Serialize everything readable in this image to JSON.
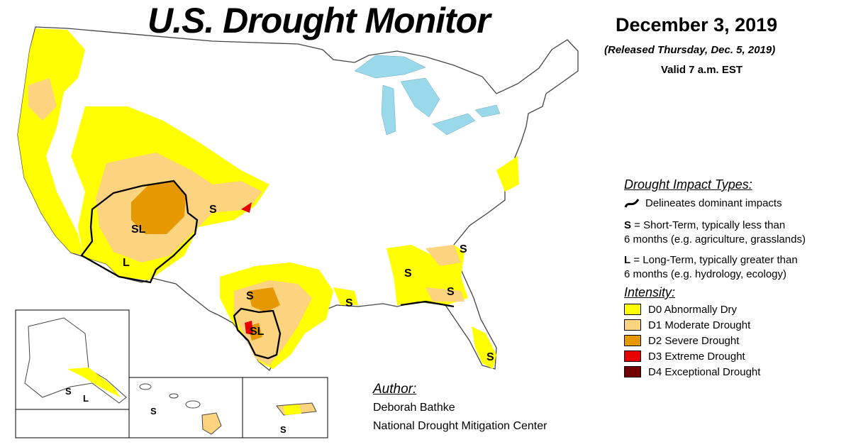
{
  "header": {
    "title": "U.S. Drought Monitor",
    "date": "December 3, 2019",
    "released": "(Released Thursday, Dec. 5, 2019)",
    "valid": "Valid 7 a.m. EST"
  },
  "impact_types": {
    "heading": "Drought Impact Types:",
    "delineates": "Delineates dominant impacts",
    "short_term": {
      "code": "S",
      "desc_line1": " = Short-Term, typically less than",
      "desc_line2": "6 months (e.g. agriculture, grasslands)"
    },
    "long_term": {
      "code": "L",
      "desc_line1": " = Long-Term, typically greater than",
      "desc_line2": "6 months (e.g. hydrology, ecology)"
    }
  },
  "intensity": {
    "heading": "Intensity:",
    "levels": [
      {
        "label": "D0 Abnormally Dry",
        "color": "#FFFF00"
      },
      {
        "label": "D1 Moderate Drought",
        "color": "#FCD37F"
      },
      {
        "label": "D2 Severe Drought",
        "color": "#E69800"
      },
      {
        "label": "D3 Extreme Drought",
        "color": "#E60000"
      },
      {
        "label": "D4 Exceptional Drought",
        "color": "#730000"
      }
    ]
  },
  "map_labels": {
    "sl_west": "SL",
    "s_central": "S",
    "l_southwest": "L",
    "s_texas": "S",
    "sl_texas": "SL",
    "s_louisiana": "S",
    "s_alabama": "S",
    "s_carolina": "S",
    "s_georgia": "S",
    "s_florida": "S",
    "s_alaska": "S",
    "l_alaska": "L",
    "s_hawaii": "S",
    "s_puerto_rico": "S"
  },
  "author": {
    "heading": "Author:",
    "name": "Deborah Bathke",
    "org": "National Drought Mitigation Center"
  },
  "colors": {
    "water": "#99D9EA",
    "border": "#555555",
    "d0": "#FFFF00",
    "d1": "#FCD37F",
    "d2": "#E69800",
    "d3": "#E60000",
    "d4": "#730000"
  }
}
